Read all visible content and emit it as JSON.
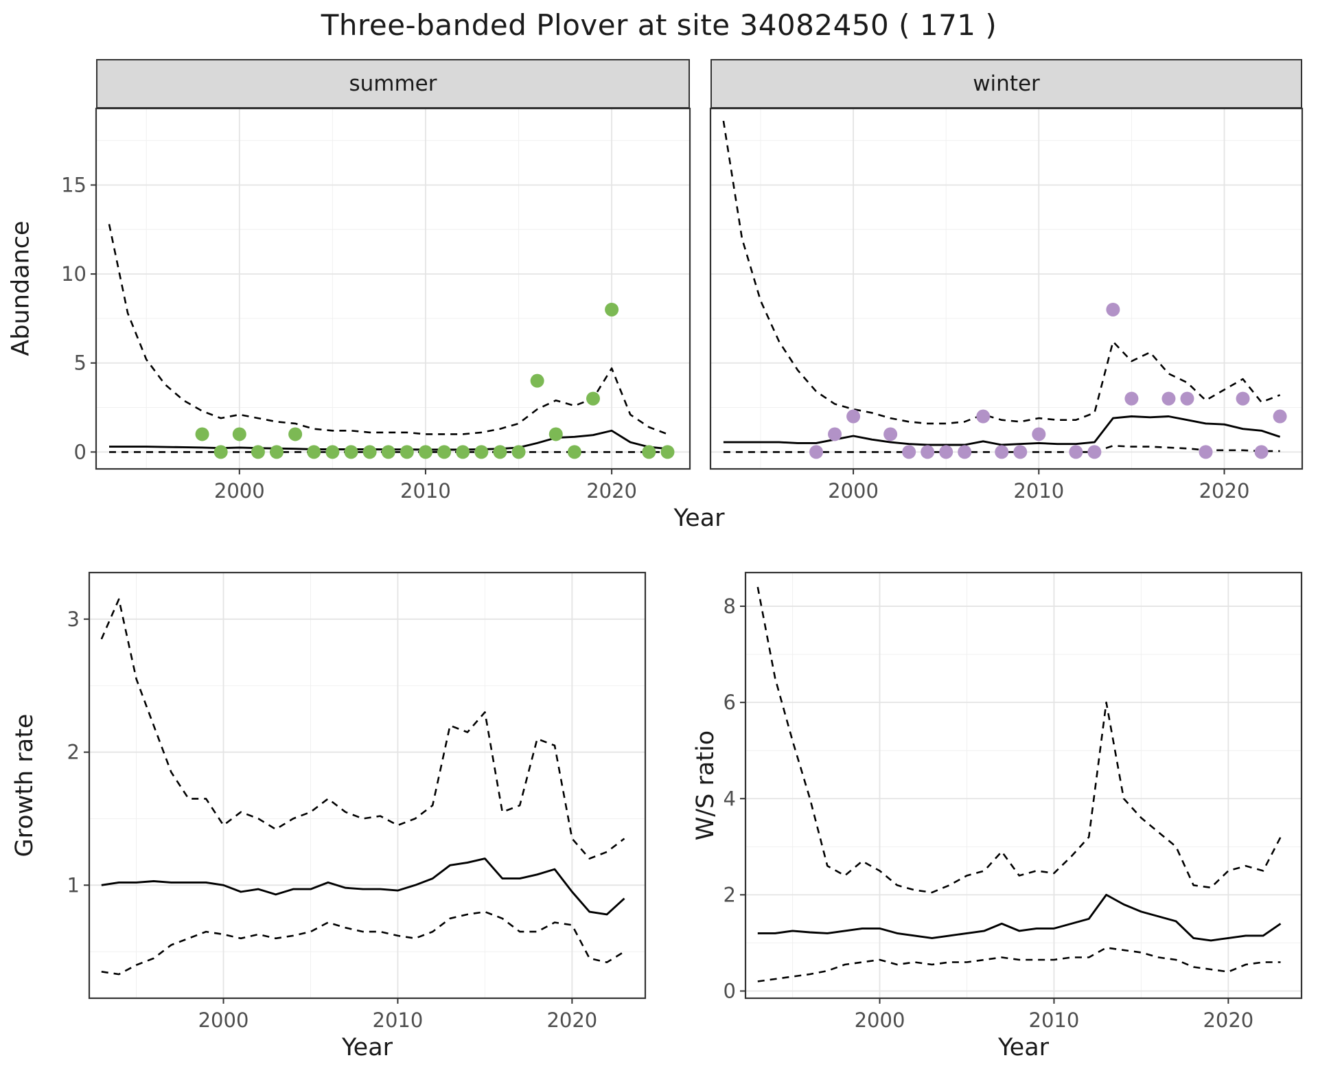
{
  "title": "Three-banded Plover at site 34082450 ( 171 )",
  "panels": {
    "top": {
      "ylabel": "Abundance",
      "xlabel": "Year",
      "facets": [
        "summer",
        "winter"
      ]
    },
    "growth": {
      "ylabel": "Growth rate",
      "xlabel": "Year"
    },
    "ratio": {
      "ylabel": "W/S ratio",
      "xlabel": "Year"
    }
  },
  "theme": {
    "panel_bg": "#FFFFFF",
    "grid_major": "#E4E4E4",
    "grid_minor": "#F0F0F0",
    "border": "#333333",
    "tick_color": "#333333",
    "text_color": "#4D4D4D",
    "line_color": "#000000",
    "strip_bg": "#D9D9D9",
    "summer_point_color": "#7CB954",
    "winter_point_color": "#B292C7"
  },
  "chart_data": [
    {
      "id": "abundance-summer",
      "type": "line",
      "facet": "summer",
      "xlabel": "Year",
      "ylabel": "Abundance",
      "xlim": [
        1992.3,
        2024.2
      ],
      "ylim": [
        -0.95,
        19.3
      ],
      "xticks": [
        2000,
        2010,
        2020
      ],
      "yticks": [
        0,
        5,
        10,
        15
      ],
      "minor_x": [
        1995,
        2005,
        2015
      ],
      "minor_y": [
        2.5,
        7.5,
        12.5,
        17.5
      ],
      "x": [
        1993,
        1994,
        1995,
        1996,
        1997,
        1998,
        1999,
        2000,
        2001,
        2002,
        2003,
        2004,
        2005,
        2006,
        2007,
        2008,
        2009,
        2010,
        2011,
        2012,
        2013,
        2014,
        2015,
        2016,
        2017,
        2018,
        2019,
        2020,
        2021,
        2022,
        2023
      ],
      "series": [
        {
          "name": "upper_95ci",
          "style": "dashed",
          "y": [
            12.8,
            7.8,
            5.2,
            3.8,
            2.9,
            2.3,
            1.9,
            2.1,
            1.9,
            1.7,
            1.6,
            1.3,
            1.2,
            1.2,
            1.1,
            1.1,
            1.1,
            1.0,
            1.0,
            1.0,
            1.1,
            1.3,
            1.6,
            2.4,
            2.9,
            2.6,
            3.0,
            4.7,
            2.1,
            1.4,
            1.0
          ]
        },
        {
          "name": "lower_95ci",
          "style": "dashed",
          "y": [
            0,
            0,
            0,
            0,
            0,
            0,
            0,
            0,
            0,
            0,
            0,
            0,
            0,
            0,
            0,
            0,
            0,
            0,
            0,
            0,
            0,
            0,
            0,
            0,
            0,
            0,
            0,
            0,
            0,
            0,
            0
          ]
        },
        {
          "name": "median_estimate",
          "style": "solid",
          "y": [
            0.3,
            0.3,
            0.3,
            0.28,
            0.27,
            0.25,
            0.22,
            0.25,
            0.22,
            0.2,
            0.18,
            0.15,
            0.15,
            0.15,
            0.15,
            0.14,
            0.14,
            0.13,
            0.13,
            0.13,
            0.15,
            0.18,
            0.25,
            0.5,
            0.8,
            0.85,
            0.95,
            1.2,
            0.55,
            0.28,
            0.18
          ]
        },
        {
          "name": "observed_counts",
          "style": "points",
          "color": "#7CB954",
          "x": [
            1998,
            1999,
            2000,
            2001,
            2002,
            2003,
            2004,
            2005,
            2006,
            2007,
            2008,
            2009,
            2010,
            2011,
            2012,
            2013,
            2014,
            2015,
            2016,
            2017,
            2018,
            2019,
            2020,
            2022,
            2023
          ],
          "y": [
            1,
            0,
            1,
            0,
            0,
            1,
            0,
            0,
            0,
            0,
            0,
            0,
            0,
            0,
            0,
            0,
            0,
            0,
            4,
            1,
            0,
            3,
            8,
            0,
            0
          ]
        }
      ]
    },
    {
      "id": "abundance-winter",
      "type": "line",
      "facet": "winter",
      "xlabel": "Year",
      "ylabel": "Abundance",
      "yaxis": false,
      "xlim": [
        1992.3,
        2024.2
      ],
      "ylim": [
        -0.95,
        19.3
      ],
      "xticks": [
        2000,
        2010,
        2020
      ],
      "yticks": [
        0,
        5,
        10,
        15
      ],
      "minor_x": [
        1995,
        2005,
        2015
      ],
      "minor_y": [
        2.5,
        7.5,
        12.5,
        17.5
      ],
      "x": [
        1993,
        1994,
        1995,
        1996,
        1997,
        1998,
        1999,
        2000,
        2001,
        2002,
        2003,
        2004,
        2005,
        2006,
        2007,
        2008,
        2009,
        2010,
        2011,
        2012,
        2013,
        2014,
        2015,
        2016,
        2017,
        2018,
        2019,
        2020,
        2021,
        2022,
        2023
      ],
      "series": [
        {
          "name": "upper_95ci",
          "style": "dashed",
          "y": [
            18.6,
            12.0,
            8.5,
            6.2,
            4.6,
            3.4,
            2.7,
            2.4,
            2.2,
            1.9,
            1.7,
            1.6,
            1.6,
            1.7,
            2.1,
            1.8,
            1.7,
            1.9,
            1.8,
            1.8,
            2.2,
            6.2,
            5.1,
            5.6,
            4.4,
            3.9,
            2.9,
            3.5,
            4.1,
            2.8,
            3.2
          ]
        },
        {
          "name": "lower_95ci",
          "style": "dashed",
          "y": [
            0,
            0,
            0,
            0,
            0,
            0,
            0,
            0,
            0,
            0,
            0,
            0,
            0,
            0,
            0,
            0,
            0,
            0,
            0,
            0,
            0,
            0.35,
            0.3,
            0.3,
            0.25,
            0.2,
            0.1,
            0.1,
            0.1,
            0.05,
            0.05
          ]
        },
        {
          "name": "median_estimate",
          "style": "solid",
          "y": [
            0.55,
            0.55,
            0.55,
            0.55,
            0.5,
            0.5,
            0.7,
            0.9,
            0.7,
            0.55,
            0.45,
            0.4,
            0.4,
            0.4,
            0.6,
            0.4,
            0.45,
            0.5,
            0.45,
            0.45,
            0.55,
            1.9,
            2.0,
            1.95,
            2.0,
            1.8,
            1.6,
            1.55,
            1.3,
            1.2,
            0.85
          ]
        },
        {
          "name": "observed_counts",
          "style": "points",
          "color": "#B292C7",
          "x": [
            1998,
            1999,
            2000,
            2002,
            2003,
            2004,
            2005,
            2006,
            2007,
            2008,
            2009,
            2010,
            2012,
            2013,
            2014,
            2015,
            2017,
            2018,
            2019,
            2021,
            2022,
            2023
          ],
          "y": [
            0,
            1,
            2,
            1,
            0,
            0,
            0,
            0,
            2,
            0,
            0,
            1,
            0,
            0,
            8,
            3,
            3,
            3,
            0,
            3,
            0,
            2
          ]
        }
      ]
    },
    {
      "id": "growth-rate",
      "type": "line",
      "xlabel": "Year",
      "ylabel": "Growth rate",
      "xlim": [
        1992.3,
        2024.2
      ],
      "ylim": [
        0.15,
        3.35
      ],
      "xticks": [
        2000,
        2010,
        2020
      ],
      "yticks": [
        1,
        2,
        3
      ],
      "minor_x": [
        1995,
        2005,
        2015
      ],
      "minor_y": [
        0.5,
        1.5,
        2.5
      ],
      "x": [
        1993,
        1994,
        1995,
        1996,
        1997,
        1998,
        1999,
        2000,
        2001,
        2002,
        2003,
        2004,
        2005,
        2006,
        2007,
        2008,
        2009,
        2010,
        2011,
        2012,
        2013,
        2014,
        2015,
        2016,
        2017,
        2018,
        2019,
        2020,
        2021,
        2022,
        2023
      ],
      "series": [
        {
          "name": "upper_95ci",
          "style": "dashed",
          "y": [
            2.85,
            3.15,
            2.55,
            2.2,
            1.85,
            1.65,
            1.65,
            1.45,
            1.55,
            1.5,
            1.42,
            1.5,
            1.55,
            1.65,
            1.55,
            1.5,
            1.52,
            1.45,
            1.5,
            1.6,
            2.2,
            2.15,
            2.3,
            1.55,
            1.6,
            2.1,
            2.05,
            1.35,
            1.2,
            1.25,
            1.35
          ]
        },
        {
          "name": "lower_95ci",
          "style": "dashed",
          "y": [
            0.35,
            0.33,
            0.4,
            0.45,
            0.55,
            0.6,
            0.65,
            0.63,
            0.6,
            0.63,
            0.6,
            0.62,
            0.65,
            0.72,
            0.68,
            0.65,
            0.65,
            0.62,
            0.6,
            0.65,
            0.75,
            0.78,
            0.8,
            0.75,
            0.65,
            0.65,
            0.72,
            0.7,
            0.45,
            0.42,
            0.5
          ]
        },
        {
          "name": "median_estimate",
          "style": "solid",
          "y": [
            1.0,
            1.02,
            1.02,
            1.03,
            1.02,
            1.02,
            1.02,
            1.0,
            0.95,
            0.97,
            0.93,
            0.97,
            0.97,
            1.02,
            0.98,
            0.97,
            0.97,
            0.96,
            1.0,
            1.05,
            1.15,
            1.17,
            1.2,
            1.05,
            1.05,
            1.08,
            1.12,
            0.95,
            0.8,
            0.78,
            0.9
          ]
        }
      ]
    },
    {
      "id": "ws-ratio",
      "type": "line",
      "xlabel": "Year",
      "ylabel": "W/S ratio",
      "xlim": [
        1992.3,
        2024.2
      ],
      "ylim": [
        -0.15,
        8.7
      ],
      "xticks": [
        2000,
        2010,
        2020
      ],
      "yticks": [
        0,
        2,
        4,
        6,
        8
      ],
      "minor_x": [
        1995,
        2005,
        2015
      ],
      "minor_y": [
        1,
        3,
        5,
        7
      ],
      "x": [
        1993,
        1994,
        1995,
        1996,
        1997,
        1998,
        1999,
        2000,
        2001,
        2002,
        2003,
        2004,
        2005,
        2006,
        2007,
        2008,
        2009,
        2010,
        2011,
        2012,
        2013,
        2014,
        2015,
        2016,
        2017,
        2018,
        2019,
        2020,
        2021,
        2022,
        2023
      ],
      "series": [
        {
          "name": "upper_95ci",
          "style": "dashed",
          "y": [
            8.4,
            6.5,
            5.2,
            4.0,
            2.6,
            2.4,
            2.7,
            2.5,
            2.2,
            2.1,
            2.05,
            2.2,
            2.4,
            2.5,
            2.9,
            2.4,
            2.5,
            2.45,
            2.8,
            3.2,
            6.0,
            4.0,
            3.6,
            3.3,
            3.0,
            2.2,
            2.15,
            2.5,
            2.6,
            2.5,
            3.2
          ]
        },
        {
          "name": "lower_95ci",
          "style": "dashed",
          "y": [
            0.2,
            0.25,
            0.3,
            0.35,
            0.42,
            0.55,
            0.6,
            0.65,
            0.55,
            0.6,
            0.55,
            0.6,
            0.6,
            0.65,
            0.7,
            0.65,
            0.65,
            0.65,
            0.7,
            0.7,
            0.9,
            0.85,
            0.8,
            0.7,
            0.65,
            0.5,
            0.45,
            0.4,
            0.55,
            0.6,
            0.6
          ]
        },
        {
          "name": "median_estimate",
          "style": "solid",
          "y": [
            1.2,
            1.2,
            1.25,
            1.22,
            1.2,
            1.25,
            1.3,
            1.3,
            1.2,
            1.15,
            1.1,
            1.15,
            1.2,
            1.25,
            1.4,
            1.25,
            1.3,
            1.3,
            1.4,
            1.5,
            2.0,
            1.8,
            1.65,
            1.55,
            1.45,
            1.1,
            1.05,
            1.1,
            1.15,
            1.15,
            1.4
          ]
        }
      ]
    }
  ]
}
